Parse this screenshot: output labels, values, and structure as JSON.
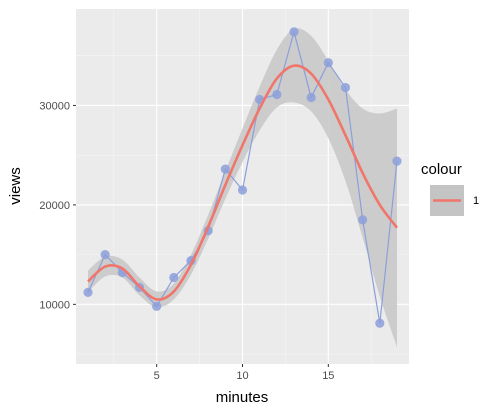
{
  "colors": {
    "panel": "#ebebeb",
    "grid_major": "#ffffff",
    "grid_minor": "#f5f5f5",
    "ribbon": "#c4c4c4",
    "smooth": "#f0756a",
    "points": "#8c9fda",
    "connector": "#8c9fda"
  },
  "chart_data": {
    "type": "line",
    "title": "",
    "xlabel": "minutes",
    "ylabel": "views",
    "xlim": [
      0.3,
      19.7
    ],
    "ylim": [
      4000,
      39700
    ],
    "grid": true,
    "x_ticks": [
      5,
      10,
      15
    ],
    "x_tick_labels": [
      "5",
      "10",
      "15"
    ],
    "y_ticks": [
      10000,
      20000,
      30000
    ],
    "y_tick_labels": [
      "10000",
      "20000",
      "30000"
    ],
    "legend": {
      "title": "colour",
      "entries": [
        "1"
      ],
      "placement": "right"
    },
    "points": {
      "x": [
        1,
        2,
        3,
        4,
        5,
        6,
        7,
        8,
        9,
        10,
        11,
        12,
        13,
        14,
        15,
        16,
        17,
        18,
        19
      ],
      "y": [
        11200,
        15000,
        13200,
        11700,
        9800,
        12700,
        14400,
        17400,
        23600,
        21500,
        30600,
        31100,
        37400,
        30800,
        34300,
        31800,
        18500,
        8100,
        24400
      ]
    },
    "smooth": {
      "x": [
        1,
        2,
        3,
        4,
        5,
        6,
        7,
        8,
        9,
        10,
        11,
        12,
        13,
        14,
        15,
        16,
        17,
        18,
        19
      ],
      "y": [
        12300,
        13800,
        13600,
        11800,
        10500,
        11300,
        14000,
        17800,
        22000,
        26000,
        29700,
        32700,
        34000,
        33200,
        30600,
        27000,
        23200,
        20000,
        17700
      ],
      "lower": [
        11200,
        12800,
        12700,
        10900,
        9700,
        10500,
        13000,
        16600,
        20600,
        24300,
        27500,
        29800,
        30300,
        29400,
        26700,
        22400,
        16700,
        10800,
        5700
      ],
      "upper": [
        13400,
        14800,
        14500,
        12700,
        11300,
        12100,
        15000,
        19000,
        23400,
        27700,
        31900,
        35600,
        37700,
        37000,
        34500,
        31600,
        29700,
        29200,
        29700
      ]
    }
  }
}
